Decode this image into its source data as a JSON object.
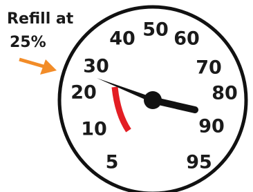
{
  "annotation": {
    "lines": [
      "Refill at",
      "25%"
    ]
  },
  "dial": {
    "labels": [
      "5",
      "10",
      "20",
      "30",
      "40",
      "50",
      "60",
      "70",
      "80",
      "90",
      "95"
    ]
  }
}
